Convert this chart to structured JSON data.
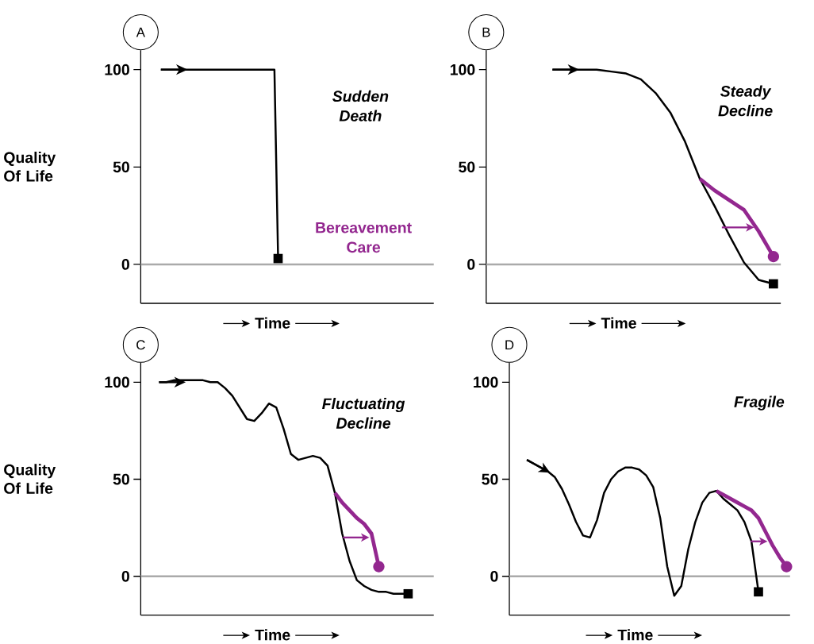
{
  "chart_data": [
    {
      "type": "line",
      "title": "Sudden Death",
      "ylabel": "Quality Of Life",
      "xlabel": "Time",
      "annotations": [
        "A",
        "Bereavement Care"
      ],
      "ylim": [
        -20,
        110
      ],
      "yticks": [
        0,
        50,
        100
      ],
      "tick_labels": "y",
      "categories": [
        null,
        null,
        null,
        null,
        null,
        null,
        null,
        null,
        null,
        null,
        null,
        null,
        null,
        null,
        null,
        null,
        null,
        null,
        null,
        null,
        null,
        null,
        null,
        null,
        null,
        null,
        null,
        null,
        null,
        null,
        null,
        null,
        null,
        null,
        null,
        null,
        null,
        null,
        null,
        null,
        null,
        null,
        null,
        null,
        null,
        null,
        null,
        null,
        null,
        null,
        null,
        null,
        null,
        null,
        null,
        null,
        null,
        null,
        null,
        null,
        null,
        null,
        null,
        null,
        null,
        null,
        null,
        null,
        null,
        null,
        null,
        null,
        null,
        null,
        null,
        null,
        null,
        null,
        null,
        null
      ],
      "ref_lines": [
        {
          "axis": "y",
          "value": 0,
          "color": "#aaaaaa"
        }
      ],
      "series": [
        {
          "color": "#000000",
          "values": [
            null,
            null,
            null,
            null,
            null,
            100,
            100,
            100,
            100,
            100,
            100,
            100,
            100,
            100,
            100,
            100,
            100,
            100,
            100,
            100,
            100,
            100,
            100,
            100,
            100,
            100,
            100,
            100,
            100,
            100,
            100,
            100,
            100,
            100,
            100,
            100,
            100,
            3,
            null,
            null,
            null,
            null,
            null,
            null,
            null,
            null,
            null,
            null,
            null,
            null,
            null,
            null,
            null,
            null,
            null,
            null,
            null,
            null,
            null,
            null,
            null,
            null,
            null,
            null,
            null,
            null,
            null,
            null,
            null,
            null,
            null,
            null,
            null,
            null,
            null,
            null,
            null,
            null,
            null,
            null
          ]
        }
      ]
    },
    {
      "type": "line",
      "title": "Steady Decline",
      "xlabel": "Time",
      "annotations": [
        "B"
      ],
      "ylim": [
        -20,
        110
      ],
      "yticks": [
        0,
        50,
        100
      ],
      "tick_labels": "y",
      "categories": [
        null,
        null,
        null,
        null,
        null,
        null,
        null,
        null,
        null,
        null,
        null,
        null,
        null,
        null,
        null,
        null,
        null,
        null,
        null,
        null
      ],
      "ref_lines": [
        {
          "axis": "y",
          "value": 0,
          "color": "#aaaaaa"
        }
      ],
      "series": [
        {
          "color": "#000000",
          "values": [
            null,
            null,
            null,
            null,
            100,
            100,
            100,
            100,
            99,
            98,
            95,
            88,
            78,
            63,
            44,
            30,
            15,
            1,
            -8,
            -10
          ]
        },
        {
          "color": "#93278f",
          "values": [
            null,
            null,
            null,
            null,
            null,
            null,
            null,
            null,
            null,
            null,
            null,
            null,
            null,
            null,
            44,
            38,
            33,
            28,
            17,
            4
          ]
        }
      ]
    },
    {
      "type": "line",
      "title": "Fluctuating Decline",
      "ylabel": "Quality Of Life",
      "xlabel": "Time",
      "annotations": [
        "C"
      ],
      "ylim": [
        -20,
        110
      ],
      "yticks": [
        0,
        50,
        100
      ],
      "tick_labels": "y",
      "categories": [
        null,
        null,
        null,
        null,
        null,
        null,
        null,
        null,
        null,
        null,
        null,
        null,
        null,
        null,
        null,
        null,
        null,
        null,
        null,
        null,
        null,
        null,
        null,
        null,
        null,
        null,
        null,
        null,
        null,
        null,
        null,
        null,
        null,
        null,
        null,
        null,
        null,
        null,
        null,
        null
      ],
      "ref_lines": [
        {
          "axis": "y",
          "value": 0,
          "color": "#aaaaaa"
        }
      ],
      "series": [
        {
          "color": "#000000",
          "values": [
            null,
            null,
            100,
            100,
            101,
            101,
            101,
            101,
            101,
            100,
            100,
            97,
            93,
            87,
            81,
            80,
            84,
            89,
            87,
            76,
            63,
            60,
            61,
            62,
            61,
            57,
            43,
            22,
            8,
            -2,
            -5,
            -7,
            -8,
            -8,
            -9,
            -9,
            -9,
            null,
            null,
            null
          ]
        },
        {
          "color": "#93278f",
          "values": [
            null,
            null,
            null,
            null,
            null,
            null,
            null,
            null,
            null,
            null,
            null,
            null,
            null,
            null,
            null,
            null,
            null,
            null,
            null,
            null,
            null,
            null,
            null,
            null,
            null,
            null,
            43,
            38,
            34,
            30,
            27,
            22,
            5,
            null,
            null,
            null,
            null,
            null,
            null,
            null
          ]
        }
      ]
    },
    {
      "type": "line",
      "title": "Fragile",
      "xlabel": "Time",
      "annotations": [
        "D"
      ],
      "ylim": [
        -20,
        110
      ],
      "yticks": [
        0,
        50,
        100
      ],
      "tick_labels": "y",
      "categories": [
        null,
        null,
        null,
        null,
        null,
        null,
        null,
        null,
        null,
        null,
        null,
        null,
        null,
        null,
        null,
        null,
        null,
        null,
        null,
        null,
        null,
        null,
        null,
        null,
        null,
        null,
        null,
        null,
        null,
        null,
        null,
        null,
        null,
        null,
        null,
        null,
        null,
        null,
        null,
        null
      ],
      "ref_lines": [
        {
          "axis": "y",
          "value": 0,
          "color": "#aaaaaa"
        }
      ],
      "series": [
        {
          "color": "#000000",
          "values": [
            null,
            null,
            60,
            58,
            56,
            54,
            51,
            45,
            37,
            28,
            21,
            20,
            29,
            43,
            50,
            54,
            56,
            56,
            55,
            52,
            46,
            30,
            5,
            -10,
            -5,
            14,
            28,
            38,
            43,
            44,
            40,
            37,
            34,
            28,
            18,
            -8,
            null,
            null,
            null,
            null
          ]
        },
        {
          "color": "#93278f",
          "values": [
            null,
            null,
            null,
            null,
            null,
            null,
            null,
            null,
            null,
            null,
            null,
            null,
            null,
            null,
            null,
            null,
            null,
            null,
            null,
            null,
            null,
            null,
            null,
            null,
            null,
            null,
            null,
            null,
            null,
            44,
            42,
            40,
            38,
            36,
            34,
            30,
            23,
            16,
            10,
            5
          ]
        }
      ]
    }
  ]
}
